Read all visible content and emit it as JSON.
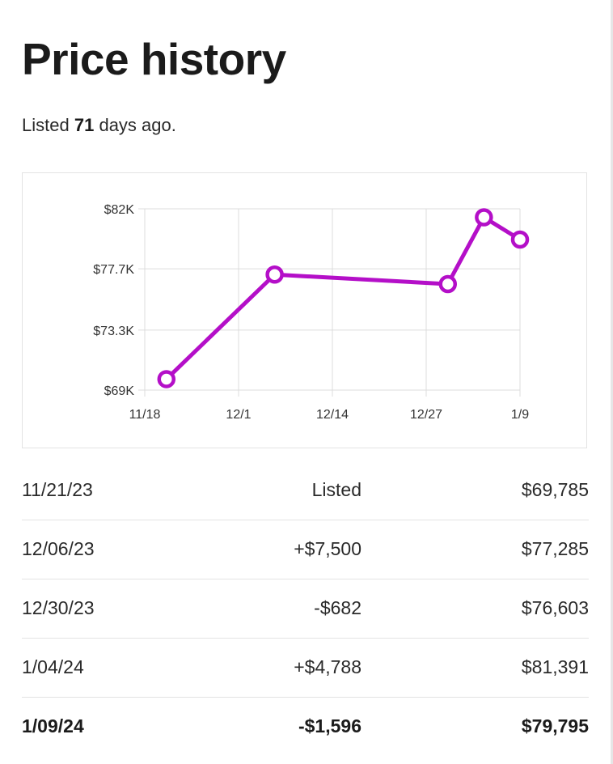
{
  "header": {
    "title": "Price history",
    "listed_prefix": "Listed",
    "listed_days": "71",
    "listed_suffix": "days ago."
  },
  "chart_data": {
    "type": "line",
    "title": "",
    "xlabel": "",
    "ylabel": "",
    "x_ticks": [
      "11/18",
      "12/1",
      "12/14",
      "12/27",
      "1/9"
    ],
    "y_ticks": [
      "$82K",
      "$77.7K",
      "$73.3K",
      "$69K"
    ],
    "y_tick_values": [
      82000,
      77700,
      73300,
      69000
    ],
    "ylim": [
      69000,
      82000
    ],
    "xlim": [
      "2023-11-18",
      "2024-01-09"
    ],
    "grid": true,
    "legend": "none",
    "series": [
      {
        "color": "#b40fc8",
        "points": [
          {
            "x": "2023-11-21",
            "y": 69785
          },
          {
            "x": "2023-12-06",
            "y": 77285
          },
          {
            "x": "2023-12-30",
            "y": 76603
          },
          {
            "x": "2024-01-04",
            "y": 81391
          },
          {
            "x": "2024-01-09",
            "y": 79795
          }
        ]
      }
    ]
  },
  "history": [
    {
      "date": "11/21/23",
      "change": "Listed",
      "price": "$69,785",
      "current": false
    },
    {
      "date": "12/06/23",
      "change": "+$7,500",
      "price": "$77,285",
      "current": false
    },
    {
      "date": "12/30/23",
      "change": "-$682",
      "price": "$76,603",
      "current": false
    },
    {
      "date": "1/04/24",
      "change": "+$4,788",
      "price": "$81,391",
      "current": false
    },
    {
      "date": "1/09/24",
      "change": "-$1,596",
      "price": "$79,795",
      "current": true
    }
  ]
}
